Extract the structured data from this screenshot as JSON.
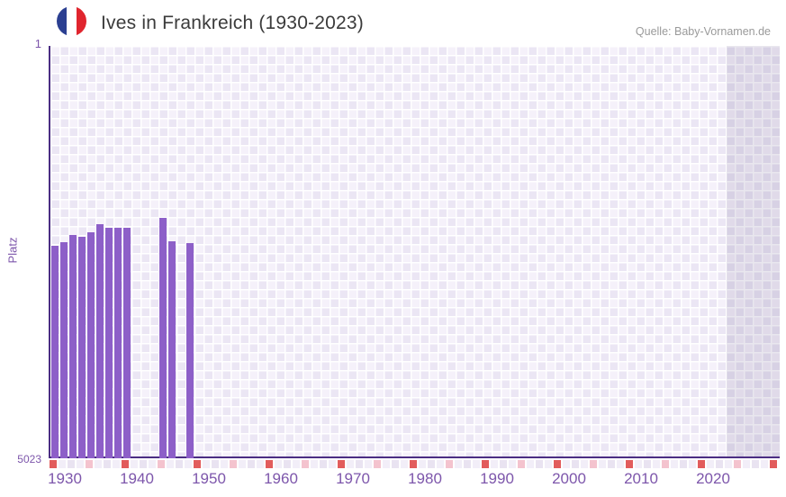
{
  "header": {
    "title": "Ives in Frankreich (1930-2023)",
    "source": "Quelle: Baby-Vornamen.de",
    "flag_icon": "france-flag-circle-icon",
    "flag_colors": {
      "blue": "#2b3f91",
      "white": "#ffffff",
      "red": "#e0252e"
    }
  },
  "chart_data": {
    "type": "bar",
    "title": "Ives in Frankreich (1930-2023)",
    "xlabel": "",
    "ylabel": "Platz",
    "y_axis": {
      "min": 1,
      "max": 5023,
      "inverted": true,
      "top_tick_label": "1",
      "bottom_tick_label": "5023"
    },
    "x_axis": {
      "first_year": 1930,
      "last_year": 2023,
      "tick_labels": [
        "1930",
        "1940",
        "1950",
        "1960",
        "1970",
        "1980",
        "1990",
        "2000",
        "2010",
        "2020"
      ]
    },
    "grid": "light purple checkerboard",
    "legend": "none",
    "bar_color": "#8d5fc8",
    "recent_years_band": {
      "present": true,
      "color": "rgba(84,66,122,0.13)"
    },
    "points": [
      {
        "year": 1930,
        "rank": 2430
      },
      {
        "year": 1931,
        "rank": 2390
      },
      {
        "year": 1932,
        "rank": 2300
      },
      {
        "year": 1933,
        "rank": 2330
      },
      {
        "year": 1934,
        "rank": 2265
      },
      {
        "year": 1935,
        "rank": 2170
      },
      {
        "year": 1936,
        "rank": 2220
      },
      {
        "year": 1937,
        "rank": 2210
      },
      {
        "year": 1938,
        "rank": 2215
      },
      {
        "year": 1942,
        "rank": 2090
      },
      {
        "year": 1943,
        "rank": 2380
      },
      {
        "year": 1945,
        "rank": 2400
      }
    ],
    "axis_strip": {
      "description": "row of small squares under x-axis, red at decades, pink at mid-decades",
      "red": "#e25c5c",
      "pink": "#f4c3ce",
      "light_a": "#e9e3f1",
      "light_b": "#f2eef8"
    }
  }
}
